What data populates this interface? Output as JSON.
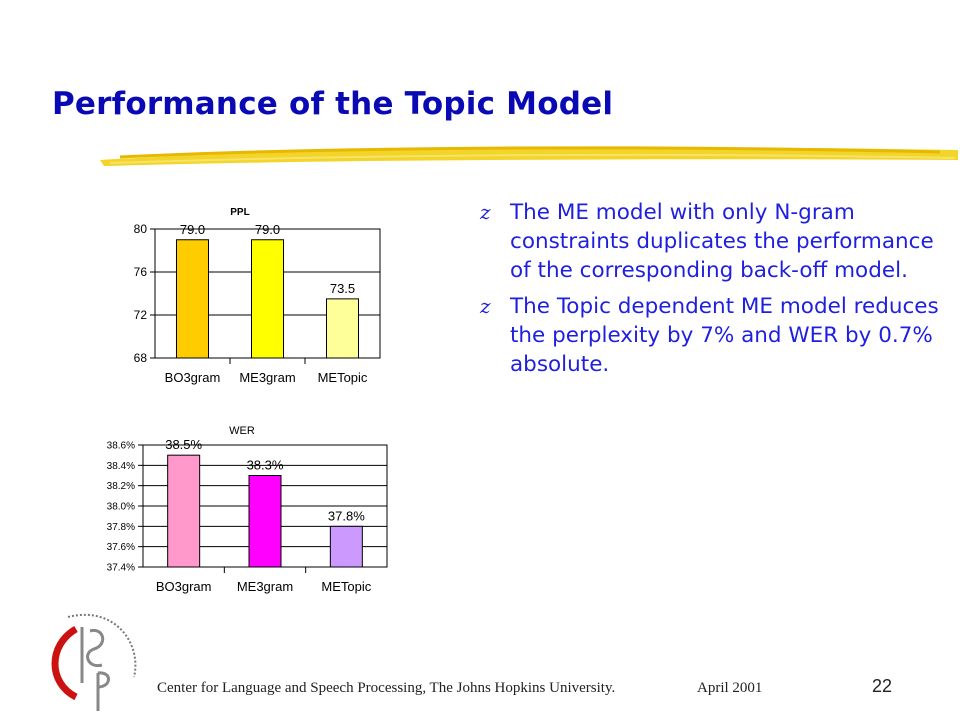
{
  "slide": {
    "title": "Performance of the Topic Model",
    "bullets": [
      "The ME model with only N-gram constraints duplicates the performance of the corresponding back-off model.",
      "The Topic dependent ME model reduces the perplexity by 7% and WER by 0.7% absolute."
    ],
    "bullet_glyph": "z",
    "footer": "Center for Language and Speech Processing, The Johns Hopkins University.",
    "date": "April 2001",
    "page_number": "22",
    "colors": {
      "title": "#0a0ab4",
      "body_text": "#1f1fe0",
      "underline": "#f2d21c"
    }
  },
  "chart_data": [
    {
      "type": "bar",
      "title": "PPL",
      "categories": [
        "BO3gram",
        "ME3gram",
        "METopic"
      ],
      "category_labels": [
        "BO3gram",
        "ME3gram",
        "METopic"
      ],
      "values": [
        79.0,
        79.0,
        73.5
      ],
      "value_labels": [
        "79.0",
        "79.0",
        "73.5"
      ],
      "bar_colors": [
        "#ffcc00",
        "#ffff00",
        "#ffff99"
      ],
      "ylim": [
        68,
        80
      ],
      "yticks": [
        68,
        72,
        76,
        80
      ],
      "ytick_labels": [
        "68",
        "72",
        "76",
        "80"
      ],
      "grid": true
    },
    {
      "type": "bar",
      "title": "WER",
      "categories": [
        "BO3gram",
        "ME3gram",
        "METopic"
      ],
      "category_labels": [
        "BO3gram",
        "ME3gram",
        "METopic"
      ],
      "values": [
        38.5,
        38.3,
        37.8
      ],
      "value_labels": [
        "38.5%",
        "38.3%",
        "37.8%"
      ],
      "bar_colors": [
        "#ff99cc",
        "#ff00ff",
        "#cc99ff"
      ],
      "ylim": [
        37.4,
        38.6
      ],
      "yticks": [
        37.4,
        37.6,
        37.8,
        38.0,
        38.2,
        38.4,
        38.6
      ],
      "ytick_labels": [
        "37.4%",
        "37.6%",
        "37.8%",
        "38.0%",
        "38.2%",
        "38.4%",
        "38.6%"
      ],
      "grid": true
    }
  ]
}
